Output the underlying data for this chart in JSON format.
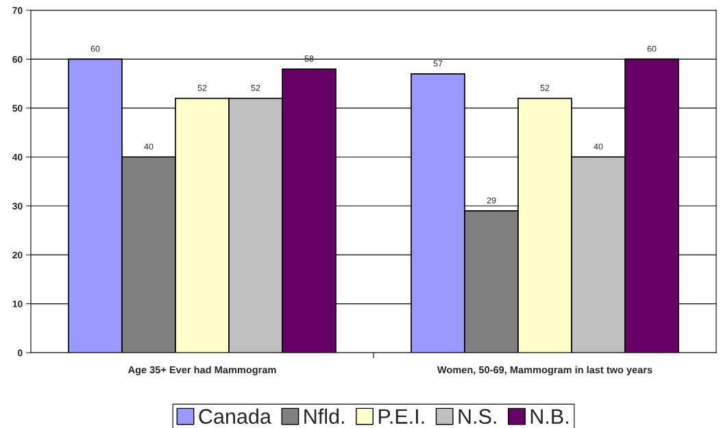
{
  "chart_data": {
    "type": "bar",
    "categories": [
      "Age 35+ Ever had Mammogram",
      "Women, 50-69, Mammogram in last two years"
    ],
    "series": [
      {
        "name": "Canada",
        "color": "#9999ff",
        "values": [
          60,
          57
        ]
      },
      {
        "name": "Nfld.",
        "color": "#808080",
        "values": [
          40,
          29
        ]
      },
      {
        "name": "P.E.I.",
        "color": "#ffffcc",
        "values": [
          52,
          52
        ]
      },
      {
        "name": "N.S.",
        "color": "#c0c0c0",
        "values": [
          52,
          40
        ]
      },
      {
        "name": "N.B.",
        "color": "#660066",
        "values": [
          58,
          60
        ]
      }
    ],
    "ylim": [
      0,
      70
    ],
    "yticks": [
      0,
      10,
      20,
      30,
      40,
      50,
      60,
      70
    ],
    "grid": "y",
    "legend": "bottom",
    "data_labels": true
  }
}
